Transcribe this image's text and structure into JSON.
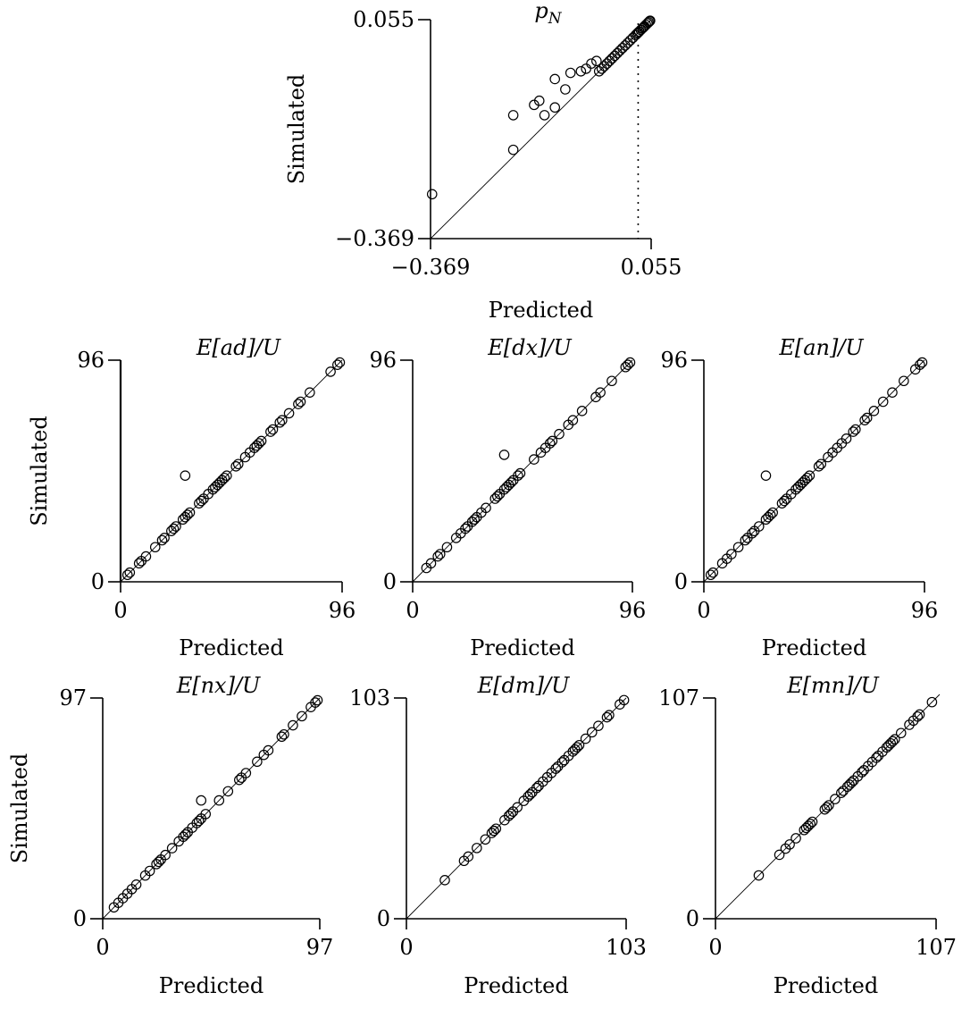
{
  "chart_data": [
    {
      "type": "scatter",
      "title": "p_N",
      "xlabel": "Predicted",
      "ylabel": "Simulated",
      "xlim": [
        -0.369,
        0.055
      ],
      "ylim": [
        -0.369,
        0.055
      ],
      "xtick_labels": [
        "−0.369",
        "0.055"
      ],
      "ytick_labels": [
        "−0.369",
        "0.055"
      ],
      "reference_line": "y = x",
      "vertical_marker_x": 0.03,
      "x": [
        -0.366,
        -0.21,
        -0.21,
        -0.17,
        -0.16,
        -0.15,
        -0.13,
        -0.13,
        -0.11,
        -0.1,
        -0.08,
        -0.07,
        -0.06,
        -0.05,
        -0.045,
        -0.04,
        -0.035,
        -0.03,
        -0.025,
        -0.02,
        -0.015,
        -0.01,
        -0.005,
        0.0,
        0.005,
        0.01,
        0.015,
        0.02,
        0.025,
        0.028,
        0.03,
        0.032,
        0.035,
        0.038,
        0.04,
        0.042,
        0.045,
        0.048,
        0.05,
        0.052,
        0.053
      ],
      "y": [
        -0.283,
        -0.197,
        -0.13,
        -0.11,
        -0.102,
        -0.13,
        -0.06,
        -0.115,
        -0.08,
        -0.048,
        -0.045,
        -0.04,
        -0.03,
        -0.025,
        -0.045,
        -0.04,
        -0.035,
        -0.03,
        -0.025,
        -0.02,
        -0.015,
        -0.01,
        -0.005,
        0.0,
        0.005,
        0.01,
        0.015,
        0.02,
        0.025,
        0.028,
        0.03,
        0.032,
        0.035,
        0.038,
        0.04,
        0.042,
        0.045,
        0.048,
        0.05,
        0.052,
        0.053
      ]
    },
    {
      "type": "scatter",
      "title": "E[ad]/U",
      "xlabel": "Predicted",
      "ylabel": "Simulated",
      "xlim": [
        0,
        96
      ],
      "ylim": [
        0,
        96
      ],
      "xtick_labels": [
        "0",
        "96"
      ],
      "ytick_labels": [
        "0",
        "96"
      ],
      "reference_line": "y = x",
      "x": [
        3,
        4,
        8,
        9,
        11,
        15,
        18,
        19,
        22,
        23,
        24,
        27,
        28,
        29,
        30,
        34,
        35,
        36,
        38,
        40,
        41,
        42,
        43,
        44,
        45,
        46,
        50,
        51,
        54,
        56,
        58,
        59,
        60,
        61,
        65,
        66,
        69,
        70,
        73,
        77,
        78,
        82,
        91,
        94,
        95,
        28
      ],
      "y": [
        3,
        4,
        8,
        9,
        11,
        15,
        18,
        19,
        22,
        23,
        24,
        27,
        28,
        29,
        30,
        34,
        35,
        36,
        38,
        40,
        41,
        42,
        43,
        44,
        45,
        46,
        50,
        51,
        54,
        56,
        58,
        59,
        60,
        61,
        65,
        66,
        69,
        70,
        73,
        77,
        78,
        82,
        91,
        94,
        95,
        46
      ]
    },
    {
      "type": "scatter",
      "title": "E[dx]/U",
      "xlabel": "Predicted",
      "ylabel": "Simulated",
      "xlim": [
        0,
        96
      ],
      "ylim": [
        0,
        96
      ],
      "xtick_labels": [
        "0",
        "96"
      ],
      "ytick_labels": [
        "0",
        "96"
      ],
      "reference_line": "y = x",
      "x": [
        6,
        8,
        11,
        12,
        15,
        19,
        21,
        23,
        24,
        26,
        27,
        28,
        30,
        32,
        36,
        37,
        38,
        40,
        41,
        42,
        43,
        44,
        46,
        47,
        53,
        56,
        58,
        60,
        61,
        64,
        68,
        70,
        74,
        80,
        82,
        87,
        93,
        94,
        95,
        40
      ],
      "y": [
        6,
        8,
        11,
        12,
        15,
        19,
        21,
        23,
        24,
        26,
        27,
        28,
        30,
        32,
        36,
        37,
        38,
        40,
        41,
        42,
        43,
        44,
        46,
        47,
        53,
        56,
        58,
        60,
        61,
        64,
        68,
        70,
        74,
        80,
        82,
        87,
        93,
        94,
        95,
        55
      ]
    },
    {
      "type": "scatter",
      "title": "E[an]/U",
      "xlabel": "Predicted",
      "ylabel": "Simulated",
      "xlim": [
        0,
        96
      ],
      "ylim": [
        0,
        96
      ],
      "xtick_labels": [
        "0",
        "96"
      ],
      "ytick_labels": [
        "0",
        "96"
      ],
      "reference_line": "y = x",
      "x": [
        3,
        4,
        8,
        10,
        12,
        15,
        18,
        19,
        21,
        22,
        24,
        27,
        28,
        29,
        30,
        34,
        35,
        36,
        38,
        40,
        41,
        42,
        43,
        44,
        45,
        46,
        50,
        51,
        54,
        56,
        58,
        60,
        62,
        65,
        66,
        70,
        71,
        74,
        78,
        82,
        87,
        92,
        94,
        95,
        27
      ],
      "y": [
        3,
        4,
        8,
        10,
        12,
        15,
        18,
        19,
        21,
        22,
        24,
        27,
        28,
        29,
        30,
        34,
        35,
        36,
        38,
        40,
        41,
        42,
        43,
        44,
        45,
        46,
        50,
        51,
        54,
        56,
        58,
        60,
        62,
        65,
        66,
        70,
        71,
        74,
        78,
        82,
        87,
        92,
        94,
        95,
        46
      ]
    },
    {
      "type": "scatter",
      "title": "E[nx]/U",
      "xlabel": "Predicted",
      "ylabel": "Simulated",
      "xlim": [
        0,
        97
      ],
      "ylim": [
        0,
        97
      ],
      "xtick_labels": [
        "0",
        "97"
      ],
      "ytick_labels": [
        "0",
        "97"
      ],
      "reference_line": "y = x",
      "x": [
        5,
        7,
        9,
        11,
        13,
        15,
        19,
        21,
        24,
        25,
        26,
        28,
        31,
        34,
        36,
        37,
        38,
        40,
        42,
        43,
        44,
        46,
        52,
        56,
        61,
        62,
        64,
        69,
        72,
        74,
        80,
        81,
        85,
        89,
        93,
        95,
        96,
        44
      ],
      "y": [
        5,
        7,
        9,
        11,
        13,
        15,
        19,
        21,
        24,
        25,
        26,
        28,
        31,
        34,
        36,
        37,
        38,
        40,
        42,
        43,
        44,
        46,
        52,
        56,
        61,
        62,
        64,
        69,
        72,
        74,
        80,
        81,
        85,
        89,
        93,
        95,
        96,
        52
      ]
    },
    {
      "type": "scatter",
      "title": "E[dm]/U",
      "xlabel": "Predicted",
      "ylabel": "Simulated",
      "xlim": [
        0,
        103
      ],
      "ylim": [
        0,
        103
      ],
      "xtick_labels": [
        "0",
        "103"
      ],
      "ytick_labels": [
        "0",
        "103"
      ],
      "reference_line": "y = x",
      "x": [
        18,
        27,
        29,
        33,
        37,
        40,
        41,
        41,
        42,
        46,
        48,
        49,
        50,
        52,
        55,
        57,
        58,
        59,
        61,
        62,
        64,
        66,
        68,
        70,
        71,
        73,
        74,
        76,
        78,
        79,
        80,
        81,
        84,
        87,
        90,
        94,
        95,
        100,
        102
      ],
      "y": [
        18,
        27,
        29,
        33,
        37,
        40,
        41,
        41,
        42,
        46,
        48,
        49,
        50,
        52,
        55,
        57,
        58,
        59,
        61,
        62,
        64,
        66,
        68,
        70,
        71,
        73,
        74,
        76,
        78,
        79,
        80,
        81,
        84,
        87,
        90,
        94,
        95,
        100,
        102
      ]
    },
    {
      "type": "scatter",
      "title": "E[mn]/U",
      "xlabel": "Predicted",
      "ylabel": "Simulated",
      "xlim": [
        0,
        107
      ],
      "ylim": [
        0,
        107
      ],
      "xtick_labels": [
        "0",
        "107"
      ],
      "ytick_labels": [
        "0",
        "107"
      ],
      "reference_line": "y = x",
      "x": [
        21,
        31,
        34,
        36,
        39,
        43,
        44,
        45,
        46,
        47,
        53,
        54,
        55,
        58,
        61,
        62,
        64,
        65,
        66,
        67,
        69,
        71,
        72,
        74,
        76,
        78,
        79,
        81,
        83,
        84,
        85,
        86,
        87,
        90,
        94,
        96,
        98,
        99,
        105
      ],
      "y": [
        21,
        31,
        34,
        36,
        39,
        43,
        44,
        45,
        46,
        47,
        53,
        54,
        55,
        58,
        61,
        62,
        64,
        65,
        66,
        67,
        69,
        71,
        72,
        74,
        76,
        78,
        79,
        81,
        83,
        84,
        85,
        86,
        87,
        90,
        94,
        96,
        98,
        99,
        105
      ]
    }
  ]
}
